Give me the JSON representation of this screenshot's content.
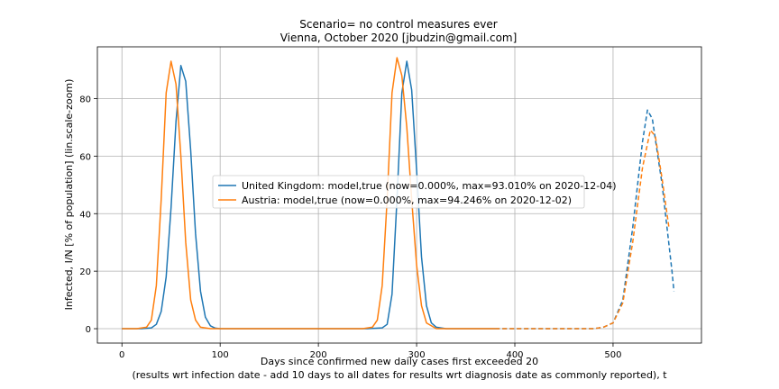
{
  "chart_data": {
    "type": "line",
    "title_line1": "Scenario= no control measures ever",
    "title_line2": "Vienna, October 2020 [jbudzin@gmail.com]",
    "xlabel_line1": "Days since confirmed new daily cases first exceeded 20",
    "xlabel_line2": "(results wrt infection date - add 10 days to all dates for results wrt diagnosis date as commonly reported), t",
    "ylabel": "Infected, I/N [% of population] (lin.scale-zoom)",
    "xlim": [
      -25,
      590
    ],
    "ylim": [
      -5,
      98
    ],
    "xticks": [
      0,
      100,
      200,
      300,
      400,
      500
    ],
    "yticks": [
      0,
      20,
      40,
      60,
      80
    ],
    "grid": true,
    "legend_position": "center",
    "series": [
      {
        "name": "United Kingdom: model,true (now=0.000%, max=93.010% on 2020-12-04)",
        "color": "#1f77b4",
        "solid": [
          [
            0,
            0
          ],
          [
            20,
            0
          ],
          [
            30,
            0.3
          ],
          [
            35,
            1.5
          ],
          [
            40,
            6
          ],
          [
            45,
            18
          ],
          [
            50,
            42
          ],
          [
            55,
            72
          ],
          [
            60,
            91.5
          ],
          [
            65,
            86
          ],
          [
            70,
            62
          ],
          [
            75,
            33
          ],
          [
            80,
            13
          ],
          [
            85,
            4
          ],
          [
            90,
            1
          ],
          [
            95,
            0.2
          ],
          [
            100,
            0
          ],
          [
            200,
            0
          ],
          [
            250,
            0
          ],
          [
            265,
            0.3
          ],
          [
            270,
            1.5
          ],
          [
            275,
            12
          ],
          [
            280,
            45
          ],
          [
            285,
            82
          ],
          [
            290,
            93
          ],
          [
            295,
            83
          ],
          [
            300,
            55
          ],
          [
            305,
            25
          ],
          [
            310,
            8
          ],
          [
            315,
            2
          ],
          [
            320,
            0.5
          ],
          [
            330,
            0
          ],
          [
            380,
            0
          ]
        ],
        "dashed": [
          [
            380,
            0
          ],
          [
            480,
            0
          ],
          [
            490,
            0.5
          ],
          [
            500,
            2
          ],
          [
            510,
            10
          ],
          [
            520,
            35
          ],
          [
            530,
            65
          ],
          [
            535,
            76
          ],
          [
            540,
            73
          ],
          [
            550,
            50
          ],
          [
            560,
            20
          ],
          [
            562,
            13
          ]
        ]
      },
      {
        "name": "Austria: model,true (now=0.000%, max=94.246% on 2020-12-02)",
        "color": "#ff7f0e",
        "solid": [
          [
            0,
            0
          ],
          [
            15,
            0
          ],
          [
            25,
            0.5
          ],
          [
            30,
            3
          ],
          [
            35,
            15
          ],
          [
            40,
            45
          ],
          [
            45,
            82
          ],
          [
            50,
            93
          ],
          [
            55,
            85
          ],
          [
            60,
            60
          ],
          [
            65,
            30
          ],
          [
            70,
            10
          ],
          [
            75,
            3
          ],
          [
            80,
            0.5
          ],
          [
            90,
            0
          ],
          [
            200,
            0
          ],
          [
            245,
            0
          ],
          [
            255,
            0.5
          ],
          [
            260,
            3
          ],
          [
            265,
            15
          ],
          [
            270,
            45
          ],
          [
            275,
            82
          ],
          [
            280,
            94.2
          ],
          [
            285,
            88
          ],
          [
            290,
            70
          ],
          [
            295,
            45
          ],
          [
            300,
            22
          ],
          [
            305,
            8
          ],
          [
            310,
            2
          ],
          [
            320,
            0
          ],
          [
            380,
            0
          ]
        ],
        "dashed": [
          [
            380,
            0
          ],
          [
            480,
            0
          ],
          [
            490,
            0.5
          ],
          [
            500,
            2
          ],
          [
            510,
            9
          ],
          [
            520,
            30
          ],
          [
            530,
            56
          ],
          [
            538,
            69
          ],
          [
            543,
            67
          ],
          [
            550,
            52
          ],
          [
            557,
            35
          ]
        ]
      }
    ]
  }
}
